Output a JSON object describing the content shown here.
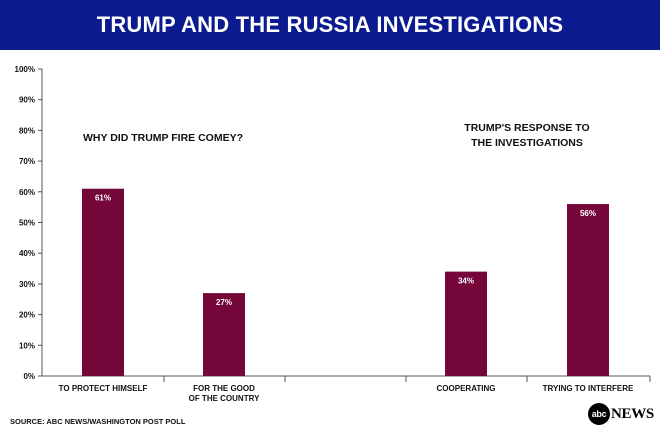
{
  "header": {
    "title": "TRUMP AND THE RUSSIA INVESTIGATIONS"
  },
  "footer": {
    "source": "SOURCE: ABC NEWS/WASHINGTON POST POLL",
    "logo_circle": "abc",
    "logo_text": "NEWS"
  },
  "colors": {
    "header_bg": "#0b1b8f",
    "bar": "#74063a",
    "axis": "#555555"
  },
  "chart_data": {
    "type": "bar",
    "y_ticks": [
      "0%",
      "10%",
      "20%",
      "30%",
      "40%",
      "50%",
      "60%",
      "70%",
      "80%",
      "90%",
      "100%"
    ],
    "ylim": [
      0,
      100
    ],
    "groups": [
      {
        "title": [
          "WHY DID TRUMP FIRE COMEY?"
        ]
      },
      {
        "title": [
          "TRUMP'S RESPONSE TO",
          "THE INVESTIGATIONS"
        ]
      }
    ],
    "categories": [
      [
        "TO PROTECT HIMSELF"
      ],
      [
        "FOR THE GOOD",
        "OF THE COUNTRY"
      ],
      [
        "COOPERATING"
      ],
      [
        "TRYING TO INTERFERE"
      ]
    ],
    "values": [
      61,
      27,
      34,
      56
    ],
    "labels": [
      "61%",
      "27%",
      "34%",
      "56%"
    ]
  }
}
